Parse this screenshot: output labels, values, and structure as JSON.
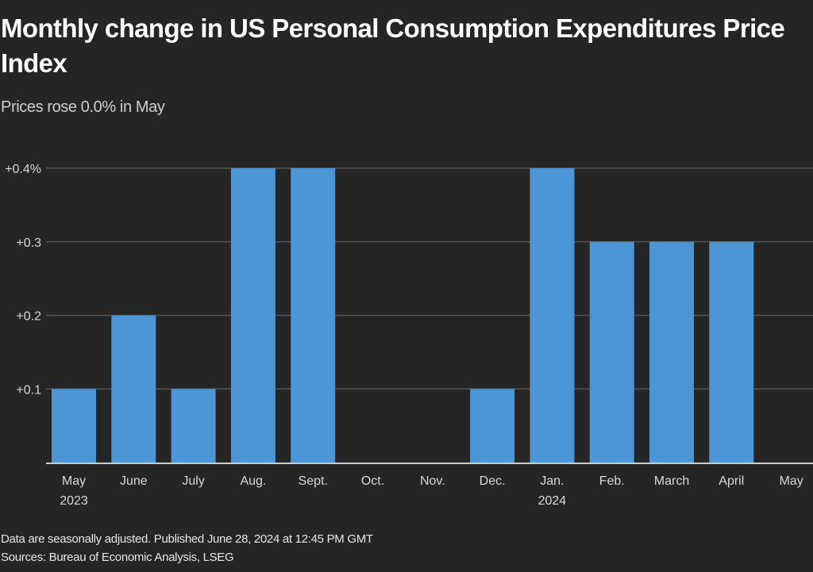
{
  "colors": {
    "background": "#252525",
    "bar": "#4d96d6",
    "grid": "#555555",
    "baseline": "#cccccc",
    "tick_text": "#d9d9d9"
  },
  "chart_data": {
    "type": "bar",
    "title": "Monthly change in US Personal Consumption Expenditures Price Index",
    "subtitle": "Prices rose 0.0% in May",
    "categories": [
      "May",
      "June",
      "July",
      "Aug.",
      "Sept.",
      "Oct.",
      "Nov.",
      "Dec.",
      "Jan.",
      "Feb.",
      "March",
      "April",
      "May"
    ],
    "category_sublabels": [
      "2023",
      "",
      "",
      "",
      "",
      "",
      "",
      "",
      "2024",
      "",
      "",
      "",
      ""
    ],
    "values": [
      0.1,
      0.2,
      0.1,
      0.4,
      0.4,
      0.0,
      0.0,
      0.1,
      0.4,
      0.3,
      0.3,
      0.3,
      0.0
    ],
    "unit": "%",
    "xlabel": "",
    "ylabel": "",
    "ylim": [
      0,
      0.4
    ],
    "yticks": [
      0.1,
      0.2,
      0.3,
      0.4
    ],
    "ytick_labels": [
      "+0.1",
      "+0.2",
      "+0.3",
      "+0.4%"
    ],
    "grid": true,
    "legend": "none"
  },
  "footer": {
    "note": "Data are seasonally adjusted. Published June 28, 2024 at 12:45 PM GMT",
    "sources": "Sources: Bureau of Economic Analysis, LSEG"
  }
}
